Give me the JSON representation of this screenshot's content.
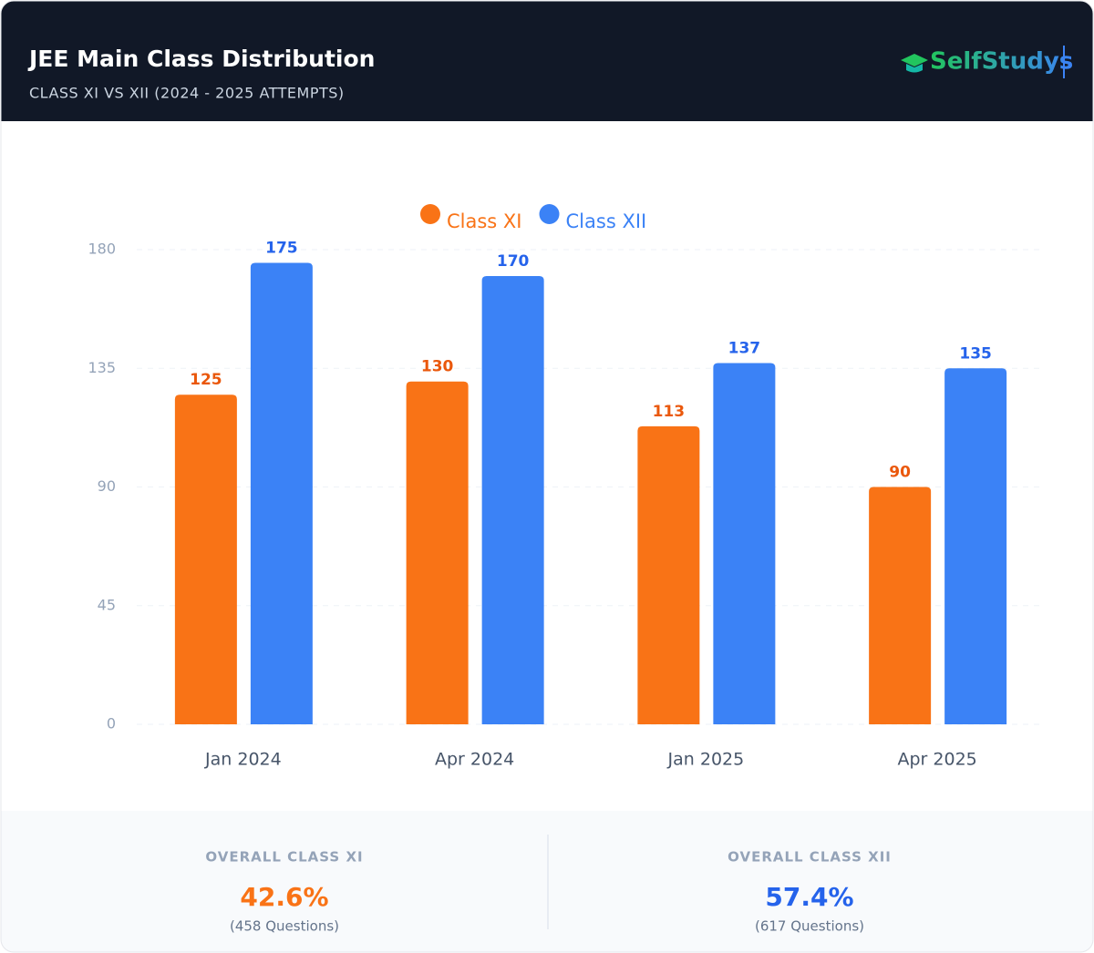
{
  "header": {
    "title": "JEE Main Class Distribution",
    "subtitle": "CLASS XI VS XII (2024 - 2025 ATTEMPTS)",
    "logo": "SelfStudys"
  },
  "chart_data": {
    "type": "bar",
    "categories": [
      "Jan 2024",
      "Apr 2024",
      "Jan 2025",
      "Apr 2025"
    ],
    "series": [
      {
        "name": "Class XI",
        "color": "#f97316",
        "values": [
          125,
          130,
          113,
          90
        ]
      },
      {
        "name": "Class XII",
        "color": "#3b82f6",
        "values": [
          175,
          170,
          137,
          135
        ]
      }
    ],
    "ylim": [
      0,
      180
    ],
    "yticks": [
      0,
      45,
      90,
      135,
      180
    ],
    "grid": true,
    "legend": "top"
  },
  "footer": {
    "stats": [
      {
        "label": "OVERALL CLASS XI",
        "value": "42.6%",
        "note": "(458 Questions)"
      },
      {
        "label": "OVERALL CLASS XII",
        "value": "57.4%",
        "note": "(617 Questions)"
      }
    ]
  }
}
